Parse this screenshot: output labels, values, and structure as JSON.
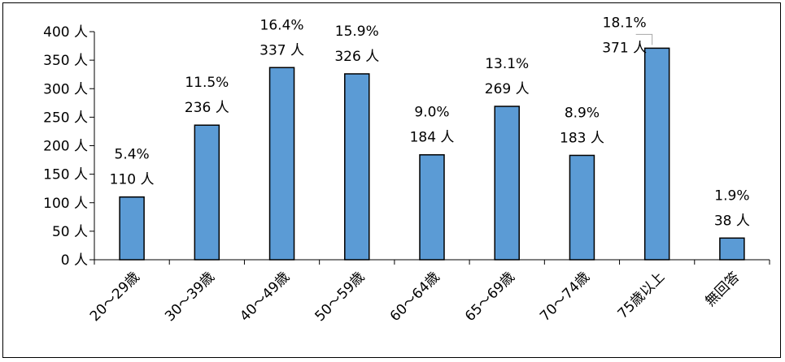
{
  "chart_data": {
    "type": "bar",
    "title": "",
    "xlabel": "",
    "ylabel": "",
    "ylim": [
      0,
      400
    ],
    "y_ticks": [
      0,
      50,
      100,
      150,
      200,
      250,
      300,
      350,
      400
    ],
    "y_tick_labels": [
      "0 人",
      "50 人",
      "100 人",
      "150 人",
      "200 人",
      "250 人",
      "300 人",
      "350 人",
      "400 人"
    ],
    "grid": false,
    "legend": "none",
    "bar_color": "#5B9BD5",
    "bar_edge_color": "#000000",
    "categories": [
      "20～29歳",
      "30～39歳",
      "40～49歳",
      "50～59歳",
      "60～64歳",
      "65～69歳",
      "70～74歳",
      "75歳以上",
      "無回答"
    ],
    "values": [
      110,
      236,
      337,
      326,
      184,
      269,
      183,
      371,
      38
    ],
    "percents": [
      "5.4%",
      "11.5%",
      "16.4%",
      "15.9%",
      "9.0%",
      "13.1%",
      "8.9%",
      "18.1%",
      "1.9%"
    ],
    "count_labels": [
      "110 人",
      "236 人",
      "337 人",
      "326 人",
      "184 人",
      "269 人",
      "183 人",
      "371 人",
      "38 人"
    ]
  }
}
